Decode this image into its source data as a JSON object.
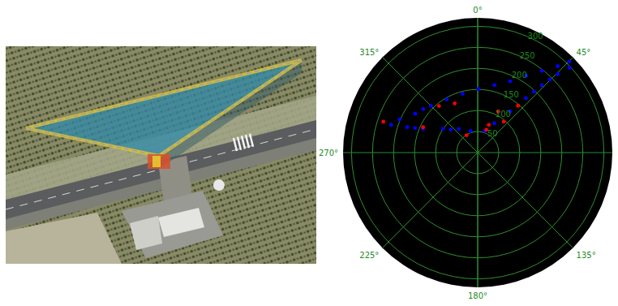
{
  "chart_data": {
    "type": "polar",
    "xlim": [
      0,
      360
    ],
    "xticks": [
      {
        "value": 0,
        "label": "0°"
      },
      {
        "value": 45,
        "label": "45°"
      },
      {
        "value": 135,
        "label": "135°"
      },
      {
        "value": 180,
        "label": "180°"
      },
      {
        "value": 225,
        "label": "225°"
      },
      {
        "value": 270,
        "label": "270°"
      },
      {
        "value": 315,
        "label": "315°"
      }
    ],
    "ylim": [
      0,
      320
    ],
    "yticks": [
      50,
      100,
      150,
      200,
      250,
      300
    ],
    "grid": true,
    "series": [
      {
        "color": "#0000ff",
        "marker": "circle",
        "x": [
          293,
          301.8,
          308.6,
          315,
          329.8,
          345.6,
          0.7,
          13.9,
          24.5,
          32.2,
          38.2,
          42.8,
          45.2,
          29.6,
          38.3,
          41.5,
          42.7,
          43.6,
          44.7,
          45.6,
          47.3,
          287.8,
          289.8,
          291.4,
          293.5,
          304.3,
          310.5,
          321.3,
          341.6,
          18.4
        ],
        "values": [
          202,
          175,
          166,
          157,
          146,
          144,
          151,
          165,
          186,
          216,
          247,
          280,
          307,
          80,
          125,
          173,
          197,
          221,
          244,
          266,
          297,
          216,
          178,
          160,
          142,
          100,
          84,
          72,
          54,
          54
        ]
      },
      {
        "color": "#ff0000",
        "marker": "circle",
        "x": [
          288.1,
          320.3,
          294.9,
          327.5,
          20.8,
          21.8,
          26.6,
          40.2,
          40.8,
          334.9
        ],
        "values": [
          236,
          144,
          143,
          49,
          58,
          71,
          109,
          96,
          147,
          129
        ]
      }
    ]
  }
}
